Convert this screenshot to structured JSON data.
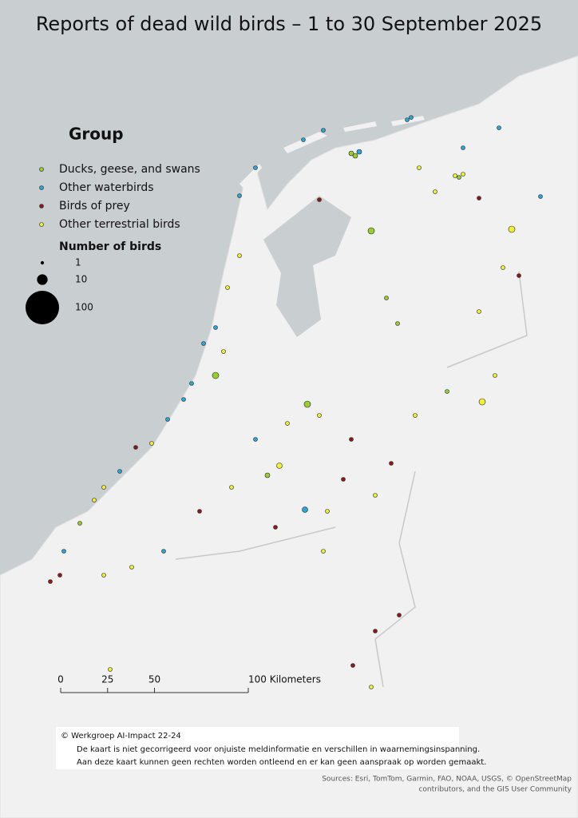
{
  "title": "Reports of dead wild birds – 1 to 30 September 2025",
  "legend": {
    "title": "Group",
    "items": [
      {
        "name": "Ducks, geese, and swans",
        "color": "#9acd32"
      },
      {
        "name": "Other waterbirds",
        "color": "#2fa4d8"
      },
      {
        "name": "Birds of prey",
        "color": "#8b1a1a"
      },
      {
        "name": "Other terrestrial birds",
        "color": "#f0f03c"
      }
    ],
    "size_title": "Number of birds",
    "sizes": [
      1,
      10,
      100
    ]
  },
  "scale_bar": {
    "ticks": [
      0,
      25,
      50,
      {
        "value": 100,
        "label": "100 Kilometers"
      }
    ]
  },
  "credits": {
    "copyright": "©  Werkgroep AI-Impact 22-24",
    "lines": [
      "De kaart is niet gecorrigeerd voor onjuiste meldinformatie en verschillen in waarnemingsinspanning.",
      "Aan deze kaart kunnen geen rechten worden ontleend en er kan geen aanspraak op worden gemaakt."
    ]
  },
  "sources": [
    "Sources: Esri, TomTom, Garmin, FAO, NOAA, USGS, © OpenStreetMap",
    "contributors, and the GIS User Community"
  ]
}
